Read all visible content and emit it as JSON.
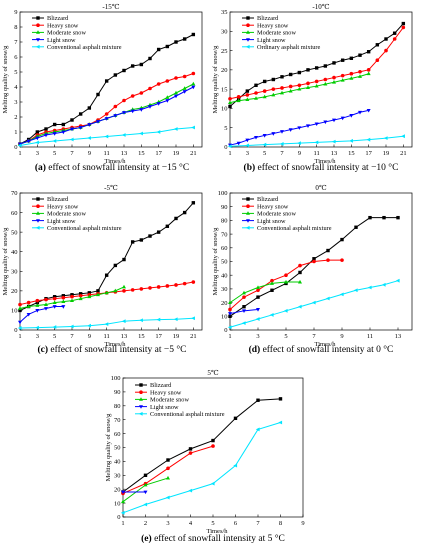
{
  "chart_data": [
    {
      "type": "line",
      "title": "-15℃",
      "caption_letter": "(a)",
      "caption_text": " effect of snowfall intensity at −15 °C",
      "xlabel": "Times/h",
      "ylabel": "Melting quality of snow/g",
      "xlim": [
        1,
        22
      ],
      "ylim": [
        0,
        9
      ],
      "xticks": [
        1,
        3,
        5,
        7,
        9,
        11,
        13,
        15,
        17,
        19,
        21
      ],
      "yticks": [
        0,
        1,
        2,
        3,
        4,
        5,
        6,
        7,
        8,
        9
      ],
      "legend_position": "top-left",
      "grid": false,
      "series": [
        {
          "name": "Blizzard",
          "color": "#000000",
          "x": [
            1,
            2,
            3,
            4,
            5,
            6,
            7,
            8,
            9,
            10,
            11,
            12,
            13,
            14,
            15,
            16,
            17,
            18,
            19,
            20,
            21
          ],
          "y": [
            0.2,
            0.5,
            1.0,
            1.2,
            1.5,
            1.5,
            1.8,
            2.2,
            2.6,
            3.5,
            4.4,
            4.8,
            5.1,
            5.4,
            5.5,
            5.9,
            6.5,
            6.7,
            7.0,
            7.2,
            7.5
          ]
        },
        {
          "name": "Heavy snow",
          "color": "#ff0000",
          "x": [
            1,
            2,
            3,
            4,
            5,
            6,
            7,
            8,
            9,
            10,
            11,
            12,
            13,
            14,
            15,
            16,
            17,
            18,
            19,
            20,
            21
          ],
          "y": [
            0.2,
            0.4,
            0.8,
            1.0,
            1.1,
            1.2,
            1.3,
            1.4,
            1.5,
            1.8,
            2.2,
            2.7,
            3.1,
            3.4,
            3.6,
            3.9,
            4.2,
            4.4,
            4.6,
            4.7,
            4.9
          ]
        },
        {
          "name": "Moderate snow",
          "color": "#00cc00",
          "x": [
            1,
            2,
            3,
            4,
            5,
            6,
            7,
            8,
            9,
            10,
            11,
            12,
            13,
            14,
            15,
            16,
            17,
            18,
            19,
            20,
            21
          ],
          "y": [
            0.2,
            0.4,
            0.7,
            0.9,
            1.0,
            1.1,
            1.2,
            1.3,
            1.5,
            1.7,
            1.9,
            2.1,
            2.3,
            2.5,
            2.6,
            2.8,
            3.0,
            3.3,
            3.6,
            3.9,
            4.2
          ]
        },
        {
          "name": "Light snow",
          "color": "#0000ff",
          "x": [
            1,
            2,
            3,
            4,
            5,
            6,
            7,
            8,
            9,
            10,
            11,
            12,
            13,
            14,
            15,
            16,
            17,
            18,
            19,
            20,
            21
          ],
          "y": [
            0.2,
            0.4,
            0.6,
            0.8,
            0.9,
            1.0,
            1.2,
            1.3,
            1.5,
            1.7,
            1.9,
            2.1,
            2.3,
            2.4,
            2.5,
            2.7,
            2.9,
            3.1,
            3.4,
            3.7,
            4.0
          ]
        },
        {
          "name": "Conventional asphalt mixture",
          "color": "#00e5ff",
          "x": [
            1,
            3,
            5,
            7,
            9,
            11,
            13,
            15,
            17,
            19,
            21
          ],
          "y": [
            0.1,
            0.3,
            0.4,
            0.5,
            0.6,
            0.7,
            0.8,
            0.9,
            1.0,
            1.2,
            1.3
          ]
        }
      ]
    },
    {
      "type": "line",
      "title": "-10℃",
      "caption_letter": "(b)",
      "caption_text": " effect of snowfall intensity at −10 °C",
      "xlabel": "Times/h",
      "ylabel": "Melting quality of snow/g",
      "xlim": [
        1,
        22
      ],
      "ylim": [
        0,
        35
      ],
      "xticks": [
        1,
        3,
        5,
        7,
        9,
        11,
        13,
        15,
        17,
        19,
        21
      ],
      "yticks": [
        0,
        5,
        10,
        15,
        20,
        25,
        30,
        35
      ],
      "legend_position": "top-left",
      "grid": false,
      "series": [
        {
          "name": "Blizzard",
          "color": "#000000",
          "x": [
            1,
            2,
            3,
            4,
            5,
            6,
            7,
            8,
            9,
            10,
            11,
            12,
            13,
            14,
            15,
            16,
            17,
            18,
            19,
            20,
            21
          ],
          "y": [
            10.5,
            12.5,
            14.5,
            16,
            17,
            17.5,
            18.2,
            18.8,
            19.3,
            20,
            20.5,
            21,
            21.8,
            22.5,
            23,
            23.8,
            24.7,
            26.5,
            28,
            29.5,
            32
          ]
        },
        {
          "name": "Heavy snow",
          "color": "#ff0000",
          "x": [
            1,
            2,
            3,
            4,
            5,
            6,
            7,
            8,
            9,
            10,
            11,
            12,
            13,
            14,
            15,
            16,
            17,
            18,
            19,
            20,
            21
          ],
          "y": [
            12.5,
            13,
            13.5,
            14,
            14.5,
            15,
            15.3,
            15.7,
            16,
            16.5,
            17,
            17.5,
            18,
            18.5,
            19,
            19.5,
            20,
            22.5,
            25,
            28,
            31
          ]
        },
        {
          "name": "Moderate snow",
          "color": "#00cc00",
          "x": [
            1,
            2,
            3,
            4,
            5,
            6,
            7,
            8,
            9,
            10,
            11,
            12,
            13,
            14,
            15,
            16,
            17
          ],
          "y": [
            11.5,
            12,
            12.3,
            12.6,
            13,
            13.5,
            14,
            14.5,
            15,
            15.4,
            15.8,
            16.3,
            16.8,
            17.3,
            17.8,
            18.3,
            19
          ]
        },
        {
          "name": "Light snow",
          "color": "#0000ff",
          "x": [
            1,
            2,
            3,
            4,
            5,
            6,
            7,
            8,
            9,
            10,
            11,
            12,
            13,
            14,
            15,
            16,
            17
          ],
          "y": [
            0.5,
            1,
            1.8,
            2.5,
            3,
            3.5,
            4,
            4.5,
            5,
            5.5,
            6,
            6.5,
            7,
            7.5,
            8.2,
            9,
            9.5
          ]
        },
        {
          "name": "Ordinary asphalt mixture",
          "color": "#00e5ff",
          "x": [
            1,
            3,
            5,
            7,
            9,
            11,
            13,
            15,
            17,
            19,
            21
          ],
          "y": [
            0.2,
            0.4,
            0.6,
            0.8,
            1,
            1.2,
            1.4,
            1.6,
            1.9,
            2.3,
            2.8
          ]
        }
      ]
    },
    {
      "type": "line",
      "title": "-5℃",
      "caption_letter": "(c)",
      "caption_text": " effect of snowfall intensity at −5 °C",
      "xlabel": "Times/h",
      "ylabel": "Melting quality of snow/g",
      "xlim": [
        1,
        22
      ],
      "ylim": [
        0,
        70
      ],
      "xticks": [
        1,
        3,
        5,
        7,
        9,
        11,
        13,
        15,
        17,
        19,
        21
      ],
      "yticks": [
        0,
        10,
        20,
        30,
        40,
        50,
        60,
        70
      ],
      "legend_position": "top-left",
      "grid": false,
      "series": [
        {
          "name": "Blizzard",
          "color": "#000000",
          "x": [
            1,
            2,
            3,
            4,
            5,
            6,
            7,
            8,
            9,
            10,
            11,
            12,
            13,
            14,
            15,
            16,
            17,
            18,
            19,
            20,
            21
          ],
          "y": [
            10,
            12,
            14,
            16,
            17,
            17.5,
            18,
            18.5,
            19,
            20,
            28,
            33,
            36,
            45,
            46,
            48,
            50,
            53,
            57,
            60,
            65
          ]
        },
        {
          "name": "Heavy snow",
          "color": "#ff0000",
          "x": [
            1,
            2,
            3,
            4,
            5,
            6,
            7,
            8,
            9,
            10,
            11,
            12,
            13,
            14,
            15,
            16,
            17,
            18,
            19,
            20,
            21
          ],
          "y": [
            13,
            14,
            15,
            15.5,
            16,
            16.5,
            17,
            17.5,
            18,
            18.5,
            19,
            19.5,
            20,
            20.5,
            21,
            21.5,
            22,
            22.5,
            23,
            23.7,
            24.5
          ]
        },
        {
          "name": "Moderate snow",
          "color": "#00cc00",
          "x": [
            1,
            2,
            3,
            4,
            5,
            6,
            7,
            8,
            9,
            10,
            11,
            12,
            13
          ],
          "y": [
            11,
            12,
            12.5,
            13,
            14,
            14.5,
            15,
            16,
            17,
            18,
            19,
            20,
            22
          ]
        },
        {
          "name": "Light snow",
          "color": "#0000ff",
          "x": [
            1,
            2,
            3,
            4,
            5,
            6
          ],
          "y": [
            4,
            8,
            10,
            11,
            12,
            12
          ]
        },
        {
          "name": "Conventional asphalt mixture",
          "color": "#00e5ff",
          "x": [
            1,
            3,
            5,
            7,
            9,
            11,
            13,
            15,
            17,
            19,
            21
          ],
          "y": [
            1,
            1.2,
            1.5,
            1.8,
            2.2,
            3,
            4.5,
            5,
            5.3,
            5.5,
            6
          ]
        }
      ]
    },
    {
      "type": "line",
      "title": "0℃",
      "caption_letter": "(d)",
      "caption_text": " effect of snowfall intensity at 0 °C",
      "xlabel": "Times/h",
      "ylabel": "Melting quality of snow/g",
      "xlim": [
        1,
        14
      ],
      "ylim": [
        0,
        100
      ],
      "xticks": [
        1,
        3,
        5,
        7,
        9,
        11,
        13
      ],
      "yticks": [
        0,
        10,
        20,
        30,
        40,
        50,
        60,
        70,
        80,
        90,
        100
      ],
      "legend_position": "top-left",
      "grid": false,
      "series": [
        {
          "name": "Blizzard",
          "color": "#000000",
          "x": [
            1,
            2,
            3,
            4,
            5,
            6,
            7,
            8,
            9,
            10,
            11,
            12,
            13
          ],
          "y": [
            10,
            17,
            24,
            29,
            34,
            42,
            52,
            58,
            66,
            75,
            82,
            82,
            82
          ]
        },
        {
          "name": "Heavy snow",
          "color": "#ff0000",
          "x": [
            1,
            2,
            3,
            4,
            5,
            6,
            7,
            8,
            9
          ],
          "y": [
            15,
            24,
            29,
            36,
            40,
            47,
            50,
            51,
            51
          ]
        },
        {
          "name": "Moderate snow",
          "color": "#00cc00",
          "x": [
            1,
            2,
            3,
            4,
            5,
            6
          ],
          "y": [
            20,
            27,
            31,
            34,
            35,
            35
          ]
        },
        {
          "name": "Light snow",
          "color": "#0000ff",
          "x": [
            1,
            2,
            3
          ],
          "y": [
            12,
            14,
            15
          ]
        },
        {
          "name": "Conventional asphalt mixture",
          "color": "#00e5ff",
          "x": [
            1,
            2,
            3,
            4,
            5,
            6,
            7,
            8,
            9,
            10,
            11,
            12,
            13
          ],
          "y": [
            2,
            5,
            8,
            11,
            14,
            17,
            20,
            23,
            26,
            29,
            31,
            33,
            36
          ]
        }
      ]
    },
    {
      "type": "line",
      "title": "5℃",
      "caption_letter": "(e)",
      "caption_text": " effect of snowfall intensity at 5 °C",
      "xlabel": "Times/h",
      "ylabel": "Melting quality of snow/g",
      "xlim": [
        1,
        9
      ],
      "ylim": [
        0,
        100
      ],
      "xticks": [
        1,
        2,
        3,
        4,
        5,
        6,
        7,
        8,
        9
      ],
      "yticks": [
        0,
        10,
        20,
        30,
        40,
        50,
        60,
        70,
        80,
        90,
        100
      ],
      "legend_position": "top-left",
      "grid": false,
      "series": [
        {
          "name": "Blizzard",
          "color": "#000000",
          "x": [
            1,
            2,
            3,
            4,
            5,
            6,
            7,
            8
          ],
          "y": [
            18,
            30,
            41,
            49,
            55,
            71,
            84,
            85
          ]
        },
        {
          "name": "Heavy snow",
          "color": "#ff0000",
          "x": [
            1,
            2,
            3,
            4,
            5
          ],
          "y": [
            17,
            24,
            35,
            46,
            51
          ]
        },
        {
          "name": "Moderate snow",
          "color": "#00cc00",
          "x": [
            1,
            2,
            3
          ],
          "y": [
            11,
            23,
            28
          ]
        },
        {
          "name": "Light snow",
          "color": "#0000ff",
          "x": [
            1,
            2
          ],
          "y": [
            18,
            18
          ]
        },
        {
          "name": "Conventional asphalt mixture",
          "color": "#00e5ff",
          "x": [
            1,
            2,
            3,
            4,
            5,
            6,
            7,
            8
          ],
          "y": [
            3,
            9,
            14,
            19,
            24,
            37,
            63,
            68
          ]
        }
      ]
    }
  ]
}
